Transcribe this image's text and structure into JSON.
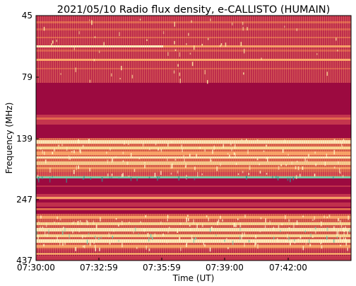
{
  "chart_data": {
    "type": "heatmap",
    "title": "2021/05/10  Radio flux density, e-CALLISTO (HUMAIN)",
    "xlabel": "Time (UT)",
    "ylabel": "Frequency (MHz)",
    "x_ticks": [
      "07:30:00",
      "07:32:59",
      "07:35:59",
      "07:39:00",
      "07:42:00"
    ],
    "y_ticks": [
      "45",
      "79",
      "139",
      "247",
      "437"
    ],
    "y_scale": "log",
    "ylim": [
      45,
      437
    ],
    "xlim": [
      "07:30:00",
      "07:45:00"
    ],
    "colormap": "Spectral_r",
    "colors": {
      "background": "#9c0a40",
      "mid_red": "#c93a4f",
      "orange": "#f08050",
      "light_orange": "#fba96a",
      "pale_yellow": "#fde7a0",
      "cream": "#fff6c4",
      "teal": "#7ccaa8",
      "dark_teal": "#3a8f8a"
    }
  }
}
